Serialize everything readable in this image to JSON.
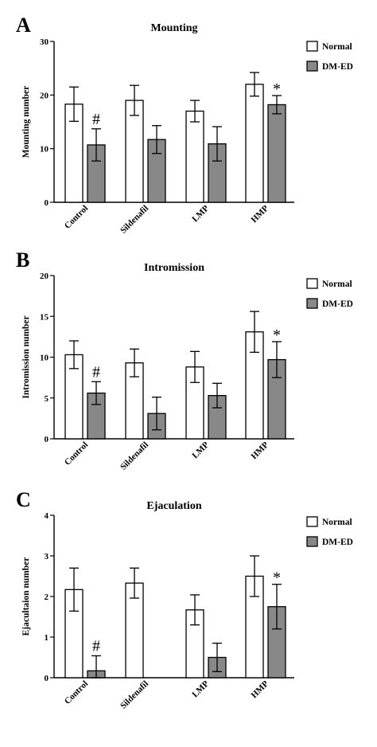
{
  "chart_data": [
    {
      "type": "bar",
      "panel": "A",
      "title": "Mounting",
      "xlabel": "",
      "ylabel": "Mounting number",
      "ylim": [
        0,
        30
      ],
      "yticks": [
        "0",
        "10",
        "20",
        "30"
      ],
      "categories": [
        "Control",
        "Sildenafil",
        "LMP",
        "HMP"
      ],
      "series": [
        {
          "name": "Normal",
          "color": "#ffffff",
          "values": [
            18.3,
            19.0,
            17.0,
            22.0
          ],
          "errors": [
            3.2,
            2.8,
            2.0,
            2.2
          ]
        },
        {
          "name": "DM-ED",
          "color": "#888888",
          "values": [
            10.7,
            11.7,
            10.9,
            18.2
          ],
          "errors": [
            3.0,
            2.6,
            3.2,
            1.7
          ]
        }
      ],
      "annotations": [
        {
          "text": "#",
          "category": "Control",
          "series": "DM-ED"
        },
        {
          "text": "*",
          "category": "HMP",
          "series": "DM-ED"
        }
      ],
      "legend": "top-right",
      "grid": false
    },
    {
      "type": "bar",
      "panel": "B",
      "title": "Intromission",
      "xlabel": "",
      "ylabel": "Intromission number",
      "ylim": [
        0,
        20
      ],
      "yticks": [
        "0",
        "5",
        "10",
        "15",
        "20"
      ],
      "categories": [
        "Control",
        "Sildenafil",
        "LMP",
        "HMP"
      ],
      "series": [
        {
          "name": "Normal",
          "color": "#ffffff",
          "values": [
            10.3,
            9.3,
            8.8,
            13.1
          ],
          "errors": [
            1.7,
            1.7,
            1.9,
            2.5
          ]
        },
        {
          "name": "DM-ED",
          "color": "#888888",
          "values": [
            5.6,
            3.1,
            5.3,
            9.7
          ],
          "errors": [
            1.4,
            2.0,
            1.5,
            2.2
          ]
        }
      ],
      "annotations": [
        {
          "text": "#",
          "category": "Control",
          "series": "DM-ED"
        },
        {
          "text": "*",
          "category": "HMP",
          "series": "DM-ED"
        }
      ],
      "legend": "top-right",
      "grid": false
    },
    {
      "type": "bar",
      "panel": "C",
      "title": "Ejaculation",
      "xlabel": "",
      "ylabel": "Ejacultaion number",
      "ylim": [
        0,
        4
      ],
      "yticks": [
        "0",
        "1",
        "2",
        "3",
        "4"
      ],
      "categories": [
        "Control",
        "Sildenafil",
        "LMP",
        "HMP"
      ],
      "series": [
        {
          "name": "Normal",
          "color": "#ffffff",
          "values": [
            2.17,
            2.33,
            1.67,
            2.5
          ],
          "errors": [
            0.53,
            0.37,
            0.37,
            0.5
          ]
        },
        {
          "name": "DM-ED",
          "color": "#888888",
          "values": [
            0.17,
            0,
            0.5,
            1.75
          ],
          "errors": [
            0.37,
            0,
            0.35,
            0.55
          ]
        }
      ],
      "annotations": [
        {
          "text": "#",
          "category": "Control",
          "series": "DM-ED"
        },
        {
          "text": "*",
          "category": "HMP",
          "series": "DM-ED"
        }
      ],
      "legend": "top-right",
      "grid": false
    }
  ]
}
